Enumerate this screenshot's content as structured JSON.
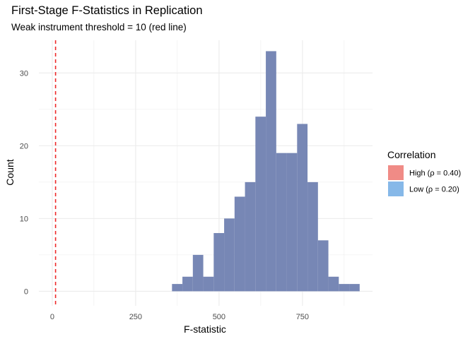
{
  "chart_data": {
    "type": "histogram",
    "title": "First-Stage F-Statistics in Replication",
    "subtitle": "Weak instrument threshold = 10 (red line)",
    "xlabel": "F-statistic",
    "ylabel": "Count",
    "xlim": [
      -40,
      960
    ],
    "ylim": [
      -2,
      34.5
    ],
    "x_ticks": [
      0,
      250,
      500,
      750
    ],
    "y_ticks": [
      0,
      10,
      20,
      30
    ],
    "grid": true,
    "bin_width": 31.25,
    "bin_start": 359,
    "counts": [
      1,
      2,
      5,
      2,
      8,
      10,
      13,
      15,
      24,
      33,
      19,
      19,
      23,
      15,
      7,
      2,
      1,
      1
    ],
    "bar_color": "#7787b5",
    "threshold": {
      "value": 10,
      "color": "#ee2a2a"
    },
    "legend": {
      "title": "Correlation",
      "position": "right",
      "entries": [
        {
          "label": "High (ρ = 0.40)",
          "color": "#f08b86"
        },
        {
          "label": "Low (ρ = 0.20)",
          "color": "#86b8e8"
        }
      ]
    }
  }
}
